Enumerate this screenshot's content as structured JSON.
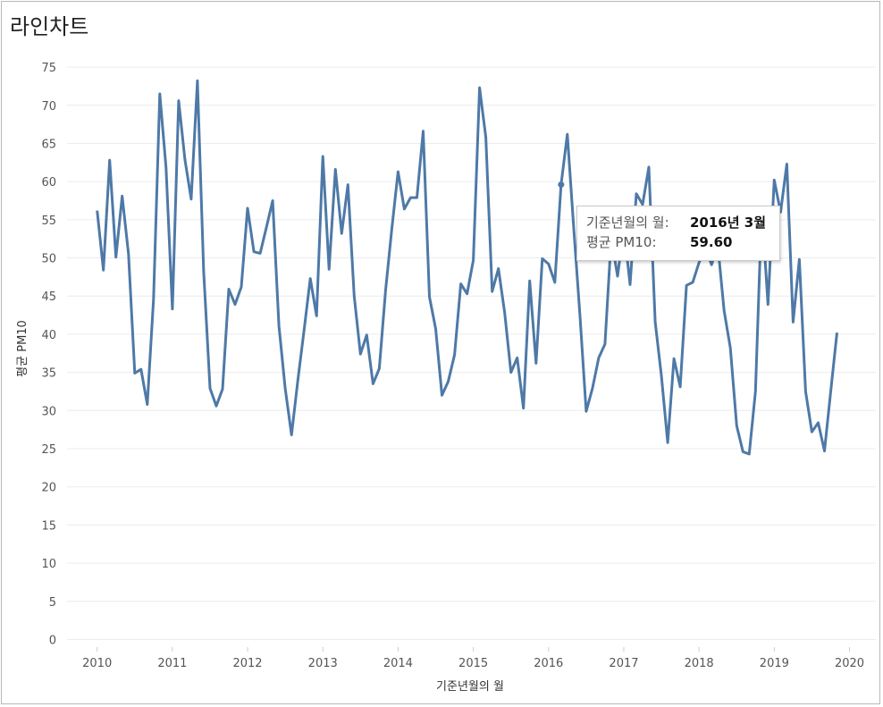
{
  "title": "라인차트",
  "chart_data": {
    "type": "line",
    "xlabel": "기준년월의 월",
    "ylabel": "평균 PM10",
    "xlim": [
      2009.6,
      2020.35
    ],
    "ylim": [
      -1,
      77
    ],
    "yticks": [
      0,
      5,
      10,
      15,
      20,
      25,
      30,
      35,
      40,
      45,
      50,
      55,
      60,
      65,
      70,
      75
    ],
    "xticks": [
      2010,
      2011,
      2012,
      2013,
      2014,
      2015,
      2016,
      2017,
      2018,
      2019,
      2020
    ],
    "grid": true,
    "line_color": "#4e79a7",
    "series": [
      {
        "x": [
          "2010-01",
          "2010-02",
          "2010-03",
          "2010-04",
          "2010-05",
          "2010-06",
          "2010-07",
          "2010-08",
          "2010-09",
          "2010-10",
          "2010-11",
          "2010-12",
          "2011-01",
          "2011-02",
          "2011-03",
          "2011-04",
          "2011-05",
          "2011-06",
          "2011-07",
          "2011-08",
          "2011-09",
          "2011-10",
          "2011-11",
          "2011-12",
          "2012-01",
          "2012-02",
          "2012-03",
          "2012-04",
          "2012-05",
          "2012-06",
          "2012-07",
          "2012-08",
          "2012-09",
          "2012-10",
          "2012-11",
          "2012-12",
          "2013-01",
          "2013-02",
          "2013-03",
          "2013-04",
          "2013-05",
          "2013-06",
          "2013-07",
          "2013-08",
          "2013-09",
          "2013-10",
          "2013-11",
          "2013-12",
          "2014-01",
          "2014-02",
          "2014-03",
          "2014-04",
          "2014-05",
          "2014-06",
          "2014-07",
          "2014-08",
          "2014-09",
          "2014-10",
          "2014-11",
          "2014-12",
          "2015-01",
          "2015-02",
          "2015-03",
          "2015-04",
          "2015-05",
          "2015-06",
          "2015-07",
          "2015-08",
          "2015-09",
          "2015-10",
          "2015-11",
          "2015-12",
          "2016-01",
          "2016-02",
          "2016-03",
          "2016-04",
          "2016-05",
          "2016-06",
          "2016-07",
          "2016-08",
          "2016-09",
          "2016-10",
          "2016-11",
          "2016-12",
          "2017-01",
          "2017-02",
          "2017-03",
          "2017-04",
          "2017-05",
          "2017-06",
          "2017-07",
          "2017-08",
          "2017-09",
          "2017-10",
          "2017-11",
          "2017-12",
          "2018-01",
          "2018-02",
          "2018-03",
          "2018-04",
          "2018-05",
          "2018-06",
          "2018-07",
          "2018-08",
          "2018-09",
          "2018-10",
          "2018-11",
          "2018-12",
          "2019-01",
          "2019-02",
          "2019-03",
          "2019-04",
          "2019-05",
          "2019-06",
          "2019-07",
          "2019-08",
          "2019-09",
          "2019-10",
          "2019-11"
        ],
        "values": [
          56.2,
          48.4,
          62.8,
          50.1,
          58.1,
          50.5,
          34.9,
          35.4,
          30.8,
          44.6,
          71.5,
          61.8,
          43.3,
          70.6,
          62.9,
          57.7,
          73.2,
          48.2,
          32.9,
          30.6,
          32.8,
          45.9,
          43.9,
          46.2,
          56.5,
          50.8,
          50.6,
          54.0,
          57.5,
          41.1,
          32.9,
          26.8,
          33.9,
          40.5,
          47.3,
          42.4,
          63.3,
          48.5,
          61.6,
          53.2,
          59.6,
          45.0,
          37.4,
          39.9,
          33.5,
          35.5,
          45.7,
          53.8,
          61.3,
          56.4,
          57.9,
          57.9,
          66.6,
          44.9,
          40.7,
          32.0,
          33.8,
          37.3,
          46.6,
          45.3,
          49.7,
          72.3,
          65.8,
          45.6,
          48.6,
          42.8,
          35.0,
          36.9,
          30.3,
          47.0,
          36.2,
          49.9,
          49.2,
          46.8,
          59.6,
          66.2,
          54.0,
          42.5,
          29.9,
          32.9,
          36.9,
          38.7,
          52.6,
          47.6,
          54.0,
          46.5,
          58.4,
          57.0,
          61.9,
          41.6,
          34.5,
          25.8,
          36.8,
          33.1,
          46.4,
          46.8,
          49.4,
          51.3,
          49.1,
          51.6,
          43.1,
          38.2,
          28.0,
          24.6,
          24.3,
          32.5,
          56.6,
          43.9,
          60.2,
          56.0,
          62.3,
          41.6,
          49.8,
          32.5,
          27.2,
          28.4,
          24.7,
          32.5,
          40.2
        ]
      }
    ],
    "tooltip": {
      "x_label": "기준년월의 월:",
      "x_value": "2016년 3월",
      "y_label": "평균 PM10:",
      "y_value": "59.60",
      "point_x": "2016-03",
      "point_y": 59.6
    }
  }
}
